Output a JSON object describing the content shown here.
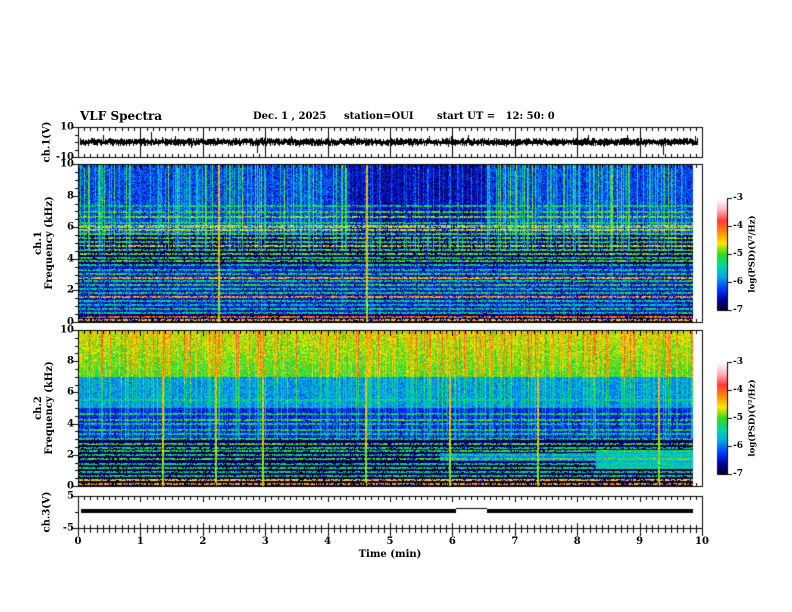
{
  "figure": {
    "title": "VLF Spectra",
    "date": "Dec. 1 , 2025",
    "station": "station=OUI",
    "start_ut": "start UT =   12: 50: 0"
  },
  "time_axis": {
    "label": "Time (min)",
    "ticks": [
      "0",
      "1",
      "2",
      "3",
      "4",
      "5",
      "6",
      "7",
      "8",
      "9",
      "10"
    ],
    "range_min": [
      0,
      10
    ],
    "minor_tick_step_min": 0.1
  },
  "panels": {
    "ch1v": {
      "ylabel": "ch.1(V)",
      "yticks": [
        "10",
        "-10"
      ],
      "range_V": [
        -10,
        10
      ]
    },
    "spec1": {
      "ylabel_line1": "ch.1",
      "ylabel_line2": "Frequency (kHz)",
      "yticks": [
        "10",
        "8",
        "6",
        "4",
        "2",
        "0"
      ],
      "range_kHz": [
        0,
        10
      ]
    },
    "spec2": {
      "ylabel_line1": "ch.2",
      "ylabel_line2": "Frequency (kHz)",
      "yticks": [
        "10",
        "8",
        "6",
        "4",
        "2",
        "0"
      ],
      "range_kHz": [
        0,
        10
      ]
    },
    "ch3v": {
      "ylabel": "ch.3(V)",
      "yticks": [
        "5",
        "-5"
      ],
      "range_V": [
        -5,
        5
      ]
    }
  },
  "colorbars": [
    {
      "label": "log(PSD)(V²/Hz)",
      "ticks": [
        "-3",
        "-4",
        "-5",
        "-6",
        "-7"
      ],
      "range": [
        -3,
        -7
      ],
      "gradient_top_to_bottom": [
        "#ffffff",
        "#ffb6c0",
        "#ff3838",
        "#ff8c00",
        "#ffe800",
        "#30d820",
        "#00d8a0",
        "#00a8e8",
        "#0040ff",
        "#0000a8",
        "#000014"
      ]
    },
    {
      "label": "log(PSD)(V²/Hz)",
      "ticks": [
        "-3",
        "-4",
        "-5",
        "-6",
        "-7"
      ],
      "range": [
        -3,
        -7
      ],
      "gradient_top_to_bottom": [
        "#ffffff",
        "#ffb6c0",
        "#ff3838",
        "#ff8c00",
        "#ffe800",
        "#30d820",
        "#00d8a0",
        "#00a8e8",
        "#0040ff",
        "#0000a8",
        "#000014"
      ]
    }
  ],
  "chart_data": [
    {
      "type": "line",
      "panel": "ch1_waveform",
      "ylabel": "ch.1(V)",
      "x_range_min": [
        0,
        10
      ],
      "y_range_V": [
        -10,
        10
      ],
      "baseline_V": 0,
      "noise_band_V": 1.3,
      "gridlines_every_min": 1,
      "data_t_range_min": [
        0.02,
        9.93
      ],
      "spikes": [
        {
          "t_min": 1.17,
          "V": 7
        },
        {
          "t_min": 2.87,
          "V": -7.5
        },
        {
          "t_min": 5.35,
          "V": -3.5
        },
        {
          "t_min": 8.8,
          "V": 4.5
        },
        {
          "t_min": 9.38,
          "V": -8.5
        }
      ]
    },
    {
      "type": "heatmap",
      "panel": "ch1_spectrogram",
      "x_range_min": [
        0,
        10
      ],
      "f_range_kHz": [
        0,
        10
      ],
      "value_label": "log(PSD)(V²/Hz)",
      "value_range": [
        -7,
        -3
      ],
      "data_t_range_min": [
        0.0,
        9.85
      ],
      "bands": [
        {
          "f": [
            5.5,
            10
          ],
          "base": -6.25,
          "noise": 0.4
        },
        {
          "f": [
            3.6,
            5.5
          ],
          "base": -6.8,
          "noise": 0.25
        },
        {
          "f": [
            0.55,
            3.6
          ],
          "base": -6.5,
          "noise": 0.35
        },
        {
          "f": [
            0,
            0.55
          ],
          "base": -6.85,
          "noise": 0.2
        }
      ],
      "patches": [
        {
          "t": [
            4.35,
            6.55
          ],
          "f": [
            5.3,
            10
          ],
          "base": -6.6,
          "noise": 0.35
        }
      ],
      "streaks": {
        "chance": 0.5,
        "profile": [
          {
            "f": [
              4.5,
              10
            ],
            "gain": 1.3
          },
          {
            "f": [
              0,
              4.5
            ],
            "gain": 0.35
          }
        ]
      },
      "red_streaks_t_min": [
        2.25,
        4.62
      ],
      "hlines": [
        {
          "f": 7.35,
          "v": -5.2
        },
        {
          "f": 7.0,
          "v": -5.0
        },
        {
          "f": 6.65,
          "v": -4.85
        },
        {
          "f": 6.3,
          "v": -5.15
        },
        {
          "f": 6.05,
          "v": -4.75
        },
        {
          "f": 5.8,
          "v": -4.6
        },
        {
          "f": 5.55,
          "v": -5.0
        },
        {
          "f": 5.3,
          "v": -4.9
        },
        {
          "f": 5.05,
          "v": -5.1
        },
        {
          "f": 4.8,
          "v": -4.7
        },
        {
          "f": 4.55,
          "v": -5.0
        },
        {
          "f": 4.3,
          "v": -4.9
        },
        {
          "f": 4.05,
          "v": -5.15
        },
        {
          "f": 3.85,
          "v": -5.0
        },
        {
          "f": 3.6,
          "v": -5.3
        },
        {
          "f": 3.3,
          "v": -5.35
        },
        {
          "f": 3.05,
          "v": -5.15
        },
        {
          "f": 2.8,
          "v": -4.4
        },
        {
          "f": 2.55,
          "v": -5.3
        },
        {
          "f": 2.3,
          "v": -5.05
        },
        {
          "f": 2.05,
          "v": -5.35
        },
        {
          "f": 1.8,
          "v": -5.15
        },
        {
          "f": 1.55,
          "v": -4.3
        },
        {
          "f": 1.3,
          "v": -5.3
        },
        {
          "f": 1.05,
          "v": -5.5
        },
        {
          "f": 0.8,
          "v": -5.2
        },
        {
          "f": 0.55,
          "v": -5.45
        },
        {
          "f": 0.3,
          "v": -4.1
        },
        {
          "f": 0.12,
          "v": -4.4
        }
      ]
    },
    {
      "type": "heatmap",
      "panel": "ch2_spectrogram",
      "x_range_min": [
        0,
        10
      ],
      "f_range_kHz": [
        0,
        10
      ],
      "value_label": "log(PSD)(V²/Hz)",
      "value_range": [
        -7,
        -3
      ],
      "data_t_range_min": [
        0.0,
        9.85
      ],
      "bands": [
        {
          "f": [
            7,
            10
          ],
          "base": -5.05,
          "noise": 0.3,
          "grad": 0.35
        },
        {
          "f": [
            5,
            7
          ],
          "base": -5.85,
          "noise": 0.35
        },
        {
          "f": [
            3,
            5
          ],
          "base": -6.4,
          "noise": 0.3
        },
        {
          "f": [
            1.5,
            3
          ],
          "base": -6.85,
          "noise": 0.15
        },
        {
          "f": [
            0,
            1.5
          ],
          "base": -6.92,
          "noise": 0.12
        }
      ],
      "patches": [
        {
          "t": [
            5.8,
            9.85
          ],
          "f": [
            1.6,
            2.1
          ],
          "base": -5.95,
          "noise": 0.3
        },
        {
          "t": [
            8.3,
            9.85
          ],
          "f": [
            1.05,
            2.3
          ],
          "base": -5.65,
          "noise": 0.3
        }
      ],
      "streaks": {
        "chance": 0.55,
        "profile": [
          {
            "f": [
              6.5,
              10
            ],
            "gain": 0.9
          },
          {
            "f": [
              3,
              6.5
            ],
            "gain": 0.75
          },
          {
            "f": [
              0,
              3
            ],
            "gain": 0.3
          }
        ]
      },
      "red_streaks_t_min": [
        1.35,
        2.2,
        2.95,
        4.6,
        5.95,
        7.35,
        9.3
      ],
      "hlines": [
        {
          "f": 5.5,
          "v": -5.4
        },
        {
          "f": 4.6,
          "v": -5.15
        },
        {
          "f": 4.25,
          "v": -5.0
        },
        {
          "f": 3.95,
          "v": -5.3
        },
        {
          "f": 3.6,
          "v": -5.1
        },
        {
          "f": 3.3,
          "v": -5.35
        },
        {
          "f": 3.0,
          "v": -5.15
        },
        {
          "f": 2.7,
          "v": -5.0
        },
        {
          "f": 2.45,
          "v": -5.3
        },
        {
          "f": 2.2,
          "v": -5.05
        },
        {
          "f": 1.95,
          "v": -5.35
        },
        {
          "f": 1.7,
          "v": -4.95
        },
        {
          "f": 1.4,
          "v": -5.45
        },
        {
          "f": 1.15,
          "v": -5.2
        },
        {
          "f": 0.9,
          "v": -5.5
        },
        {
          "f": 0.6,
          "v": -5.3
        },
        {
          "f": 0.35,
          "v": -4.5
        },
        {
          "f": 0.12,
          "v": -4.3
        }
      ]
    },
    {
      "type": "line",
      "panel": "ch3_waveform",
      "ylabel": "ch.3(V)",
      "x_range_min": [
        0,
        10
      ],
      "y_range_V": [
        -5,
        5
      ],
      "level_V": 0.4,
      "line_thickness_V": 1.2,
      "data_t_range_min": [
        0.05,
        9.85
      ],
      "dropout": {
        "t_min": [
          6.05,
          6.55
        ],
        "level_V": 1.0
      }
    }
  ]
}
